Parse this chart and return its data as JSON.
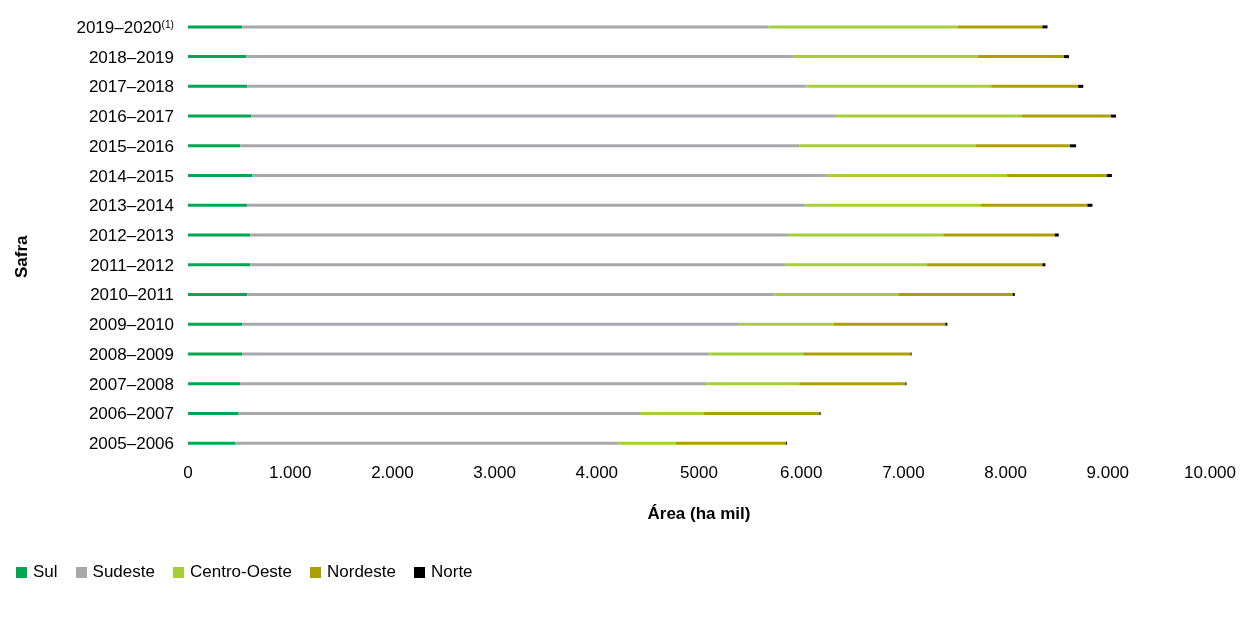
{
  "chart_data": {
    "type": "bar",
    "orientation": "horizontal",
    "stacked": true,
    "xlabel": "Área (ha mil)",
    "ylabel": "Safra",
    "categories": [
      "2019–2020$^{(1)}$",
      "2018–2019",
      "2017–2018",
      "2016–2017",
      "2015–2016",
      "2014–2015",
      "2013–2014",
      "2012–2013",
      "2011–2012",
      "2010–2011",
      "2009–2010",
      "2008–2009",
      "2007–2008",
      "2006–2007",
      "2005–2006"
    ],
    "series": [
      {
        "name": "Sul",
        "color": "#00a651",
        "values": [
          530,
          570,
          580,
          620,
          510,
          630,
          580,
          610,
          610,
          580,
          530,
          530,
          510,
          490,
          460
        ]
      },
      {
        "name": "Sudeste",
        "color": "#a7a8ab",
        "values": [
          5150,
          5360,
          5470,
          5720,
          5470,
          5620,
          5460,
          5260,
          5240,
          5160,
          4850,
          4570,
          4560,
          3940,
          3750
        ]
      },
      {
        "name": "Centro-Oeste",
        "color": "#a6ce39",
        "values": [
          1850,
          1800,
          1810,
          1820,
          1730,
          1760,
          1720,
          1520,
          1380,
          1210,
          940,
          920,
          910,
          620,
          560
        ]
      },
      {
        "name": "Nordeste",
        "color": "#ac9f00",
        "values": [
          830,
          840,
          850,
          870,
          920,
          980,
          1040,
          1090,
          1130,
          1120,
          1090,
          1050,
          1040,
          1130,
          1080
        ]
      },
      {
        "name": "Norte",
        "color": "#000000",
        "values": [
          50,
          50,
          50,
          50,
          60,
          50,
          50,
          40,
          30,
          20,
          20,
          10,
          10,
          10,
          10
        ]
      }
    ],
    "xlim": [
      0,
      10000
    ],
    "xticks": [
      0,
      {
        "value": 1000,
        "label": "1.000"
      },
      {
        "value": 2000,
        "label": "2.000"
      },
      {
        "value": 3000,
        "label": "3.000"
      },
      {
        "value": 4000,
        "label": "4.000"
      },
      5000,
      {
        "value": 6000,
        "label": "6.000"
      },
      {
        "value": 7000,
        "label": "7.000"
      },
      {
        "value": 8000,
        "label": "8.000"
      },
      {
        "value": 9000,
        "label": "9.000"
      },
      {
        "value": 10000,
        "label": "10.000"
      }
    ],
    "grid": false,
    "legend": "bottom left"
  }
}
